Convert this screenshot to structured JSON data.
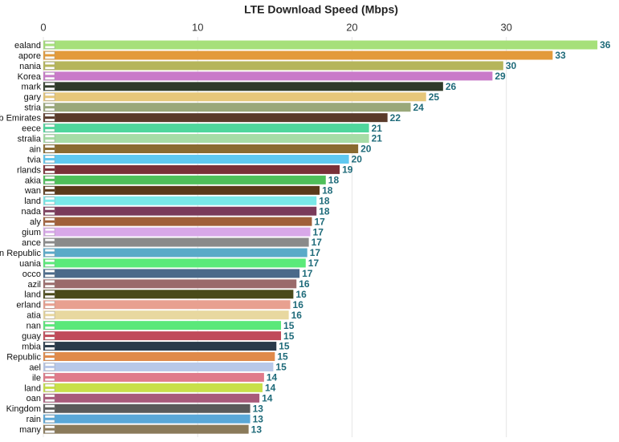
{
  "chart_data": {
    "type": "hbar",
    "title": "LTE Download Speed (Mbps)",
    "categories": [
      "ealand",
      "apore",
      "nania",
      "Korea",
      "mark",
      "gary",
      "stria",
      "b Emirates",
      "eece",
      "stralia",
      "ain",
      "tvia",
      "rlands",
      "akia",
      "wan",
      "land",
      "nada",
      "aly",
      "gium",
      "ance",
      "n Republic",
      "uania",
      "occo",
      "azil",
      "land",
      "erland",
      "atia",
      "nan",
      "guay",
      "mbia",
      "Republic",
      "ael",
      "ile",
      "land",
      "oan",
      "Kingdom",
      "rain",
      "many"
    ],
    "values": [
      35.9,
      33.0,
      29.8,
      29.1,
      25.9,
      24.8,
      23.8,
      22.3,
      21.1,
      21.1,
      20.4,
      19.8,
      19.2,
      18.3,
      17.9,
      17.7,
      17.7,
      17.4,
      17.3,
      17.2,
      17.1,
      17.0,
      16.6,
      16.4,
      16.2,
      16.0,
      15.9,
      15.4,
      15.4,
      15.1,
      15.0,
      14.9,
      14.3,
      14.2,
      14.0,
      13.4,
      13.4,
      13.3
    ],
    "value_labels": [
      "36",
      "33",
      "30",
      "29",
      "26",
      "25",
      "24",
      "22",
      "21",
      "21",
      "20",
      "20",
      "19",
      "18",
      "18",
      "18",
      "18",
      "17",
      "17",
      "17",
      "17",
      "17",
      "17",
      "16",
      "16",
      "16",
      "16",
      "15",
      "15",
      "15",
      "15",
      "15",
      "14",
      "14",
      "14",
      "13",
      "13",
      "13"
    ],
    "colors": [
      "#a6e07a",
      "#e39a3b",
      "#b5b55a",
      "#c97ac9",
      "#2f3b2a",
      "#e6c77a",
      "#9aa87a",
      "#5a3a2a",
      "#4fd69c",
      "#a6dca6",
      "#8a6a30",
      "#5fc8f0",
      "#7a3038",
      "#4fbf5a",
      "#5a3a1a",
      "#7ae8e8",
      "#7a3a5a",
      "#a0603a",
      "#d8a8e8",
      "#8a8a8a",
      "#5aaac8",
      "#5aea7a",
      "#4a6a8a",
      "#9a6a6a",
      "#4a4a1a",
      "#e8a090",
      "#e8d8a0",
      "#5ae87a",
      "#c04a5a",
      "#2a3a4a",
      "#e08a4a",
      "#b8c8e8",
      "#e07a8a",
      "#c8e04a",
      "#a85a7a",
      "#5a5a5a",
      "#5aa8d8",
      "#8a7a5a"
    ],
    "xlim": [
      0,
      37.3
    ],
    "xticks": [
      0,
      10,
      20,
      30
    ],
    "grid": true
  }
}
